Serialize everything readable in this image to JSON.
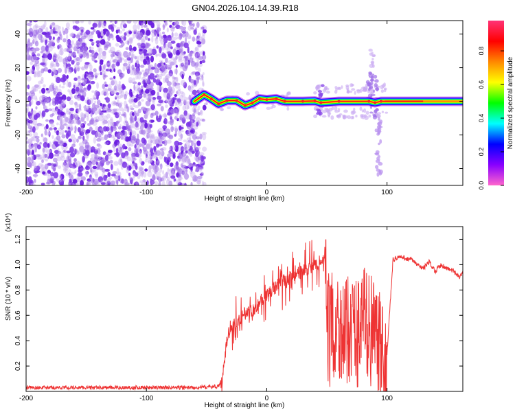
{
  "title": "GN04.2026.104.14.39.R18",
  "chart_data": [
    {
      "type": "heatmap",
      "xlabel": "Height of straight line (km)",
      "ylabel": "Frequency (Hz)",
      "xlim": [
        -200,
        163
      ],
      "ylim": [
        -50,
        48
      ],
      "xticks": [
        -200,
        -100,
        0,
        100
      ],
      "yticks": [
        -40,
        -20,
        0,
        20,
        40
      ],
      "colorbar": {
        "label": "Normalized spectral amplitude",
        "range": [
          0,
          0.98
        ],
        "ticks": [
          0.0,
          0.2,
          0.4,
          0.6,
          0.8
        ],
        "colormap": [
          "#ff66cc",
          "#8800ff",
          "#0000ff",
          "#00ffff",
          "#00ff00",
          "#ffff00",
          "#ff8800",
          "#ff0000",
          "#ff3377"
        ]
      },
      "noise_region_x": [
        -200,
        -55
      ],
      "carrier_track": [
        {
          "x": -60,
          "y": 0.0
        },
        {
          "x": -52,
          "y": 4.0
        },
        {
          "x": -46,
          "y": 1.5
        },
        {
          "x": -40,
          "y": -1.5
        },
        {
          "x": -33,
          "y": 0.5
        },
        {
          "x": -25,
          "y": 0.5
        },
        {
          "x": -18,
          "y": -2.5
        },
        {
          "x": -12,
          "y": -1.0
        },
        {
          "x": -6,
          "y": 1.5
        },
        {
          "x": 0,
          "y": 1.0
        },
        {
          "x": 8,
          "y": 1.5
        },
        {
          "x": 15,
          "y": 0.0
        },
        {
          "x": 30,
          "y": 0.0
        },
        {
          "x": 40,
          "y": 0.2
        },
        {
          "x": 45,
          "y": -0.8
        },
        {
          "x": 60,
          "y": 0.0
        },
        {
          "x": 85,
          "y": 0.0
        },
        {
          "x": 90,
          "y": -0.8
        },
        {
          "x": 95,
          "y": 0.0
        },
        {
          "x": 163,
          "y": 0.0
        }
      ]
    },
    {
      "type": "line",
      "xlabel": "Height of straight line (km)",
      "ylabel": "SNR (10 * v/v)",
      "y_multiplier_label": "(x10⁴)",
      "xlim": [
        -200,
        163
      ],
      "ylim": [
        0,
        1.3
      ],
      "xticks": [
        -200,
        -100,
        0,
        100
      ],
      "yticks": [
        0.2,
        0.4,
        0.6,
        0.8,
        1.0,
        1.2
      ],
      "color": "#ee3333",
      "series": [
        {
          "x": [
            -200,
            -150,
            -100,
            -60,
            -40,
            -37,
            -35,
            -33,
            -30,
            -25,
            -20,
            -15,
            -10,
            -5,
            0,
            5,
            10,
            20,
            30,
            40,
            45,
            48,
            50,
            52,
            55,
            60,
            65,
            70,
            75,
            80,
            85,
            90,
            95,
            98,
            100,
            105,
            110,
            115,
            120,
            125,
            130,
            135,
            140,
            145,
            150,
            155,
            160,
            163
          ],
          "y": [
            0.03,
            0.03,
            0.03,
            0.03,
            0.04,
            0.1,
            0.25,
            0.4,
            0.52,
            0.55,
            0.6,
            0.63,
            0.65,
            0.72,
            0.75,
            0.8,
            0.85,
            0.9,
            0.95,
            0.99,
            1.0,
            1.05,
            0.6,
            0.45,
            0.5,
            0.55,
            0.4,
            0.55,
            0.45,
            0.6,
            0.5,
            0.45,
            0.3,
            0.1,
            0.3,
            1.04,
            1.06,
            1.05,
            1.04,
            1.0,
            0.97,
            1.02,
            0.95,
            1.0,
            0.97,
            0.95,
            0.9,
            0.93
          ]
        }
      ]
    }
  ]
}
